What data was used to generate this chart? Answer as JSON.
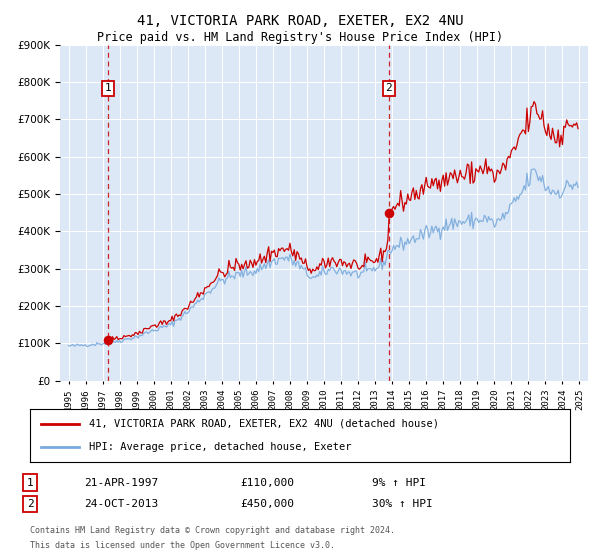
{
  "title": "41, VICTORIA PARK ROAD, EXETER, EX2 4NU",
  "subtitle": "Price paid vs. HM Land Registry's House Price Index (HPI)",
  "footer": "Contains HM Land Registry data © Crown copyright and database right 2024.\nThis data is licensed under the Open Government Licence v3.0.",
  "legend_line1": "41, VICTORIA PARK ROAD, EXETER, EX2 4NU (detached house)",
  "legend_line2": "HPI: Average price, detached house, Exeter",
  "sale1_label": "1",
  "sale1_date": "21-APR-1997",
  "sale1_price": "£110,000",
  "sale1_hpi": "9% ↑ HPI",
  "sale1_year": 1997.3,
  "sale1_value": 110000,
  "sale2_label": "2",
  "sale2_date": "24-OCT-2013",
  "sale2_price": "£450,000",
  "sale2_hpi": "30% ↑ HPI",
  "sale2_year": 2013.8,
  "sale2_value": 450000,
  "bg_color": "#ffffff",
  "plot_bg_color": "#dce8f5",
  "red_color": "#cc0000",
  "blue_color": "#7aaadd",
  "grid_color": "#ffffff",
  "annotation_box_color": "#cc0000",
  "ylim_max": 900000,
  "xlim_start": 1994.5,
  "xlim_end": 2025.5
}
